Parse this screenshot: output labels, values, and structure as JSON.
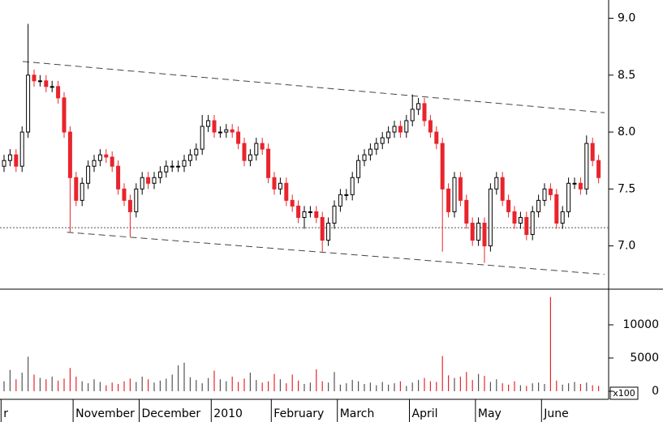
{
  "chart_data": {
    "type": "candlestick",
    "open": [
      7.7,
      7.75,
      7.8,
      7.7,
      8.0,
      8.5,
      8.45,
      8.45,
      8.4,
      8.4,
      8.3,
      8.0,
      7.6,
      7.4,
      7.55,
      7.7,
      7.75,
      7.8,
      7.78,
      7.7,
      7.5,
      7.4,
      7.3,
      7.5,
      7.6,
      7.55,
      7.6,
      7.65,
      7.7,
      7.7,
      7.7,
      7.75,
      7.8,
      7.85,
      8.05,
      8.1,
      8.0,
      8.0,
      8.02,
      8.0,
      7.9,
      7.75,
      7.8,
      7.9,
      7.85,
      7.6,
      7.5,
      7.55,
      7.4,
      7.35,
      7.25,
      7.3,
      7.3,
      7.25,
      7.05,
      7.2,
      7.35,
      7.45,
      7.45,
      7.6,
      7.75,
      7.8,
      7.85,
      7.9,
      7.95,
      8.0,
      8.05,
      8.0,
      8.1,
      8.2,
      8.25,
      8.1,
      8.0,
      7.9,
      7.5,
      7.3,
      7.6,
      7.4,
      7.2,
      7.05,
      7.2,
      7.0,
      7.5,
      7.6,
      7.4,
      7.3,
      7.2,
      7.25,
      7.1,
      7.3,
      7.4,
      7.5,
      7.45,
      7.2,
      7.3,
      7.55,
      7.55,
      7.5,
      7.9,
      7.75
    ],
    "high": [
      7.8,
      7.85,
      7.85,
      8.05,
      8.95,
      8.55,
      8.5,
      8.5,
      8.45,
      8.45,
      8.35,
      8.05,
      7.65,
      7.6,
      7.75,
      7.8,
      7.85,
      7.85,
      7.83,
      7.75,
      7.55,
      7.45,
      7.55,
      7.65,
      7.65,
      7.65,
      7.7,
      7.75,
      7.75,
      7.75,
      7.8,
      7.85,
      7.9,
      8.15,
      8.15,
      8.15,
      8.05,
      8.07,
      8.07,
      8.05,
      7.95,
      7.85,
      7.95,
      7.95,
      7.9,
      7.65,
      7.6,
      7.6,
      7.45,
      7.4,
      7.35,
      7.35,
      7.35,
      7.3,
      7.25,
      7.4,
      7.5,
      7.5,
      7.65,
      7.8,
      7.85,
      7.9,
      7.95,
      8.0,
      8.05,
      8.1,
      8.1,
      8.15,
      8.33,
      8.3,
      8.3,
      8.15,
      8.05,
      7.95,
      7.55,
      7.65,
      7.65,
      7.45,
      7.25,
      7.25,
      7.25,
      7.55,
      7.65,
      7.65,
      7.45,
      7.35,
      7.3,
      7.3,
      7.35,
      7.45,
      7.55,
      7.55,
      7.5,
      7.35,
      7.6,
      7.6,
      7.6,
      7.97,
      7.95,
      7.8
    ],
    "low": [
      7.65,
      7.7,
      7.65,
      7.65,
      7.95,
      8.4,
      8.4,
      8.35,
      8.35,
      8.25,
      7.95,
      7.12,
      7.35,
      7.35,
      7.5,
      7.65,
      7.7,
      7.73,
      7.65,
      7.45,
      7.35,
      7.08,
      7.25,
      7.45,
      7.5,
      7.5,
      7.55,
      7.6,
      7.65,
      7.65,
      7.65,
      7.7,
      7.75,
      7.8,
      8.0,
      7.95,
      7.95,
      7.95,
      7.95,
      7.85,
      7.7,
      7.7,
      7.75,
      7.8,
      7.55,
      7.45,
      7.45,
      7.35,
      7.3,
      7.2,
      7.15,
      7.25,
      7.2,
      6.95,
      7.0,
      7.15,
      7.3,
      7.4,
      7.4,
      7.55,
      7.7,
      7.75,
      7.8,
      7.85,
      7.9,
      7.95,
      7.95,
      7.95,
      8.05,
      8.15,
      8.05,
      7.95,
      7.85,
      6.95,
      7.25,
      7.25,
      7.35,
      7.15,
      7.0,
      7.0,
      6.85,
      6.95,
      7.45,
      7.35,
      7.25,
      7.15,
      7.15,
      7.05,
      7.05,
      7.25,
      7.35,
      7.4,
      7.15,
      7.15,
      7.25,
      7.5,
      7.45,
      7.45,
      7.7,
      7.55
    ],
    "close": [
      7.75,
      7.8,
      7.7,
      8.0,
      8.5,
      8.45,
      8.45,
      8.4,
      8.4,
      8.3,
      8.0,
      7.6,
      7.4,
      7.55,
      7.7,
      7.75,
      7.8,
      7.78,
      7.7,
      7.5,
      7.4,
      7.3,
      7.5,
      7.6,
      7.55,
      7.6,
      7.65,
      7.7,
      7.7,
      7.7,
      7.75,
      7.8,
      7.85,
      8.05,
      8.1,
      8.0,
      8.0,
      8.02,
      8.0,
      7.9,
      7.75,
      7.8,
      7.9,
      7.85,
      7.6,
      7.5,
      7.55,
      7.4,
      7.35,
      7.25,
      7.3,
      7.3,
      7.25,
      7.05,
      7.2,
      7.35,
      7.45,
      7.45,
      7.6,
      7.75,
      7.8,
      7.85,
      7.9,
      7.95,
      8.0,
      8.05,
      8.0,
      8.1,
      8.2,
      8.25,
      8.1,
      8.0,
      7.9,
      7.5,
      7.3,
      7.6,
      7.4,
      7.2,
      7.05,
      7.2,
      7.0,
      7.5,
      7.6,
      7.4,
      7.3,
      7.2,
      7.25,
      7.1,
      7.3,
      7.4,
      7.5,
      7.45,
      7.2,
      7.3,
      7.55,
      7.55,
      7.5,
      7.9,
      7.75,
      7.6
    ],
    "volume": [
      1500,
      3200,
      1800,
      2800,
      5200,
      2500,
      2000,
      1800,
      2200,
      1600,
      1900,
      3500,
      2200,
      1500,
      1200,
      1800,
      1400,
      900,
      1300,
      1100,
      1500,
      1900,
      1400,
      2200,
      1800,
      1300,
      1600,
      1900,
      2500,
      3900,
      4300,
      2100,
      1700,
      1200,
      2000,
      3100,
      1800,
      1500,
      2200,
      1400,
      1900,
      2800,
      1700,
      1300,
      1500,
      2600,
      1800,
      1200,
      2500,
      1600,
      1100,
      1300,
      3300,
      1500,
      1300,
      2900,
      1000,
      1200,
      1700,
      1500,
      1100,
      1300,
      900,
      1400,
      1000,
      1200,
      1500,
      800,
      1300,
      1700,
      2000,
      1500,
      1400,
      5300,
      2400,
      2000,
      2200,
      2900,
      1700,
      2600,
      2300,
      1400,
      1800,
      1200,
      1000,
      1500,
      900,
      800,
      1200,
      1300,
      1100,
      14200,
      1600,
      1000,
      1200,
      1400,
      1100,
      1300,
      900,
      800
    ],
    "up_color": "#000000",
    "down_color": "#e8242c",
    "month_labels": [
      {
        "index": 0,
        "label": "r"
      },
      {
        "index": 12,
        "label": "November"
      },
      {
        "index": 23,
        "label": "December"
      },
      {
        "index": 35,
        "label": "2010"
      },
      {
        "index": 45,
        "label": "February"
      },
      {
        "index": 56,
        "label": "March"
      },
      {
        "index": 68,
        "label": "April"
      },
      {
        "index": 79,
        "label": "May"
      },
      {
        "index": 90,
        "label": "June"
      }
    ],
    "ylim": [
      6.62,
      9.16
    ],
    "yticks": [
      {
        "value": 7,
        "label": "7.0"
      },
      {
        "value": 7.5,
        "label": "7.5"
      },
      {
        "value": 8,
        "label": "8.0"
      },
      {
        "value": 8.5,
        "label": "8.5"
      },
      {
        "value": 9,
        "label": "9.0"
      }
    ],
    "volume_ylim": [
      -1220,
      15370
    ],
    "volume_yticks": [
      0,
      5000,
      10000
    ],
    "volume_unit": "x100",
    "trendlines": [
      {
        "from": [
          3.1,
          8.62
        ],
        "to": [
          100,
          8.17
        ]
      },
      {
        "from": [
          10.5,
          7.12
        ],
        "to": [
          100,
          6.75
        ]
      }
    ],
    "reference_line": 7.16
  }
}
